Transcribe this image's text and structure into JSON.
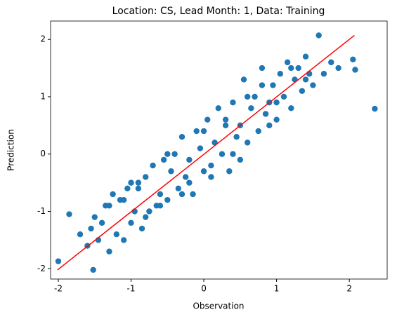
{
  "chart_data": {
    "type": "scatter",
    "title": "Location: CS, Lead Month: 1, Data: Training",
    "x_label": "Observation",
    "y_label": "Prediction",
    "xlim": [
      -2.106,
      2.52
    ],
    "ylim": [
      -2.18,
      2.32
    ],
    "xticks": [
      -2,
      -1,
      0,
      1,
      2
    ],
    "yticks": [
      -2,
      -1,
      0,
      1,
      2
    ],
    "series": [
      {
        "type": "scatter",
        "color": "#1f77b4",
        "x": [
          -2.0,
          -1.52,
          -1.85,
          -1.7,
          -1.6,
          -1.55,
          -1.5,
          -1.45,
          -1.4,
          -1.35,
          -1.3,
          -1.25,
          -1.2,
          -1.15,
          -1.1,
          -1.05,
          -1.0,
          -0.95,
          -0.9,
          -0.85,
          -0.8,
          -0.75,
          -0.7,
          -0.65,
          -0.6,
          -0.55,
          -0.5,
          -0.45,
          -0.4,
          -0.35,
          -0.3,
          -0.25,
          -0.2,
          -0.15,
          -0.1,
          -0.05,
          0,
          0.05,
          0.1,
          0.15,
          0.2,
          0.25,
          0.3,
          0.35,
          0.4,
          0.45,
          0.5,
          0.55,
          0.6,
          0.65,
          0.7,
          0.75,
          0.8,
          0.85,
          0.9,
          0.95,
          1.0,
          1.05,
          1.1,
          1.15,
          1.2,
          1.25,
          1.3,
          1.35,
          1.4,
          1.45,
          1.5,
          1.58,
          1.65,
          1.75,
          1.85,
          2.05,
          2.08,
          2.35,
          -1.3,
          -1.0,
          -0.8,
          -0.5,
          -0.3,
          0.1,
          0.3,
          0.5,
          0.8,
          1.0,
          1.2,
          -0.6,
          0.0,
          0.6,
          -1.1,
          0.9,
          -0.2,
          0.4,
          1.4,
          -0.9
        ],
        "values": [
          -1.87,
          -2.02,
          -1.05,
          -1.4,
          -1.6,
          -1.3,
          -1.1,
          -1.5,
          -1.2,
          -0.9,
          -1.7,
          -0.7,
          -1.4,
          -0.8,
          -1.5,
          -0.6,
          -1.2,
          -1.0,
          -0.5,
          -1.3,
          -0.4,
          -1.0,
          -0.2,
          -0.9,
          -0.7,
          -0.1,
          -0.8,
          -0.3,
          0.0,
          -0.6,
          0.3,
          -0.4,
          -0.1,
          -0.7,
          0.4,
          0.1,
          -0.3,
          0.6,
          -0.4,
          0.2,
          0.8,
          0.0,
          0.5,
          -0.3,
          0.9,
          0.3,
          0.5,
          1.3,
          0.2,
          0.8,
          1.0,
          0.4,
          1.5,
          0.7,
          0.9,
          1.2,
          0.6,
          1.4,
          1.0,
          1.6,
          0.8,
          1.3,
          1.5,
          1.1,
          1.7,
          1.4,
          1.2,
          2.07,
          1.4,
          1.6,
          1.5,
          1.65,
          1.47,
          0.79,
          -0.9,
          -0.5,
          -1.1,
          0.0,
          -0.7,
          -0.2,
          0.6,
          -0.1,
          1.2,
          0.9,
          1.5,
          -0.9,
          0.4,
          1.0,
          -0.8,
          0.5,
          -0.5,
          0.0,
          1.3,
          -0.6
        ]
      },
      {
        "type": "line",
        "color": "#ff0000",
        "x": [
          -2.01,
          2.07
        ],
        "values": [
          -2.02,
          2.07
        ]
      }
    ]
  }
}
